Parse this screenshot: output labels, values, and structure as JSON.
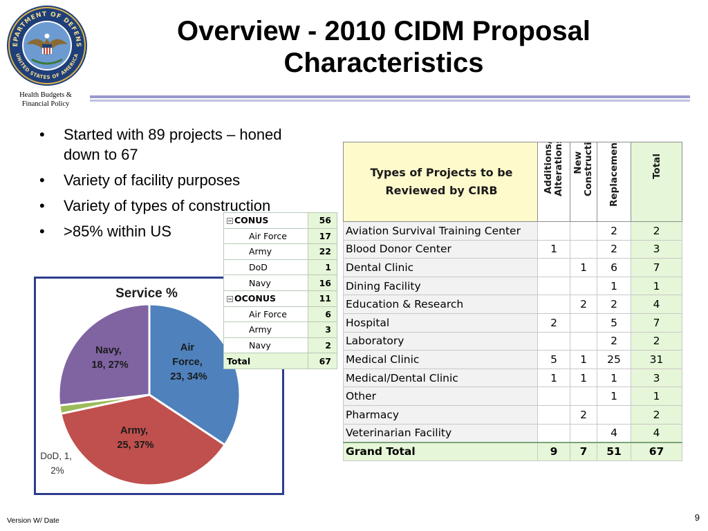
{
  "header": {
    "title_line1": "Overview - 2010 CIDM Proposal",
    "title_line2": "Characteristics",
    "org_line1": "Health Budgets  &",
    "org_line2": "Financial Policy",
    "seal_text_top": "DEPARTMENT OF DEFENSE",
    "seal_text_bottom": "UNITED STATES OF AMERICA"
  },
  "bullets": [
    "Started with 89 projects – honed down to 67",
    "Variety of facility purposes",
    "Variety of types of construction",
    ">85% within US"
  ],
  "chart_data": {
    "type": "pie",
    "title": "Service %",
    "slices": [
      {
        "name": "Air Force",
        "value": 23,
        "percent": 34,
        "label_line1": "Air",
        "label_line2": "Force,",
        "label_line3": "23, 34%",
        "color": "#4f81bd"
      },
      {
        "name": "Army",
        "value": 25,
        "percent": 37,
        "label_line1": "Army,",
        "label_line2": "25, 37%",
        "color": "#c0504d"
      },
      {
        "name": "DoD",
        "value": 1,
        "percent": 2,
        "label_line1": "DoD, 1,",
        "label_line2": "2%",
        "color": "#9bbb59"
      },
      {
        "name": "Navy",
        "value": 18,
        "percent": 27,
        "label_line1": "Navy,",
        "label_line2": "18, 27%",
        "color": "#8064a2"
      }
    ]
  },
  "service_table": {
    "rows": [
      {
        "label": "CONUS",
        "value": "56",
        "kind": "grp"
      },
      {
        "label": "Air Force",
        "value": "17",
        "kind": "sub"
      },
      {
        "label": "Army",
        "value": "22",
        "kind": "sub"
      },
      {
        "label": "DoD",
        "value": "1",
        "kind": "sub"
      },
      {
        "label": "Navy",
        "value": "16",
        "kind": "sub"
      },
      {
        "label": "OCONUS",
        "value": "11",
        "kind": "grp"
      },
      {
        "label": "Air Force",
        "value": "6",
        "kind": "sub"
      },
      {
        "label": "Army",
        "value": "3",
        "kind": "sub"
      },
      {
        "label": "Navy",
        "value": "2",
        "kind": "sub"
      }
    ],
    "total_label": "Total",
    "total_value": "67"
  },
  "projects_table": {
    "header_line1": "Types of Projects to be",
    "header_line2": "Reviewed by CIRB",
    "col1_line1": "Additions/",
    "col1_line2": "Alterations",
    "col2_line1": "New",
    "col2_line2": "Construction",
    "col3": "Replacement",
    "col4": "Total",
    "rows": [
      {
        "name": "Aviation Survival Training Center",
        "add": "",
        "new": "",
        "rep": "2",
        "total": "2"
      },
      {
        "name": "Blood Donor Center",
        "add": "1",
        "new": "",
        "rep": "2",
        "total": "3"
      },
      {
        "name": "Dental Clinic",
        "add": "",
        "new": "1",
        "rep": "6",
        "total": "7"
      },
      {
        "name": "Dining Facility",
        "add": "",
        "new": "",
        "rep": "1",
        "total": "1"
      },
      {
        "name": "Education & Research",
        "add": "",
        "new": "2",
        "rep": "2",
        "total": "4"
      },
      {
        "name": "Hospital",
        "add": "2",
        "new": "",
        "rep": "5",
        "total": "7"
      },
      {
        "name": "Laboratory",
        "add": "",
        "new": "",
        "rep": "2",
        "total": "2"
      },
      {
        "name": "Medical Clinic",
        "add": "5",
        "new": "1",
        "rep": "25",
        "total": "31"
      },
      {
        "name": "Medical/Dental Clinic",
        "add": "1",
        "new": "1",
        "rep": "1",
        "total": "3"
      },
      {
        "name": "Other",
        "add": "",
        "new": "",
        "rep": "1",
        "total": "1"
      },
      {
        "name": "Pharmacy",
        "add": "",
        "new": "2",
        "rep": "",
        "total": "2"
      },
      {
        "name": "Veterinarian Facility",
        "add": "",
        "new": "",
        "rep": "4",
        "total": "4"
      }
    ],
    "grand": {
      "name": "Grand Total",
      "add": "9",
      "new": "7",
      "rep": "51",
      "total": "67"
    }
  },
  "footer": {
    "version": "Version W/ Date",
    "page": "9"
  }
}
